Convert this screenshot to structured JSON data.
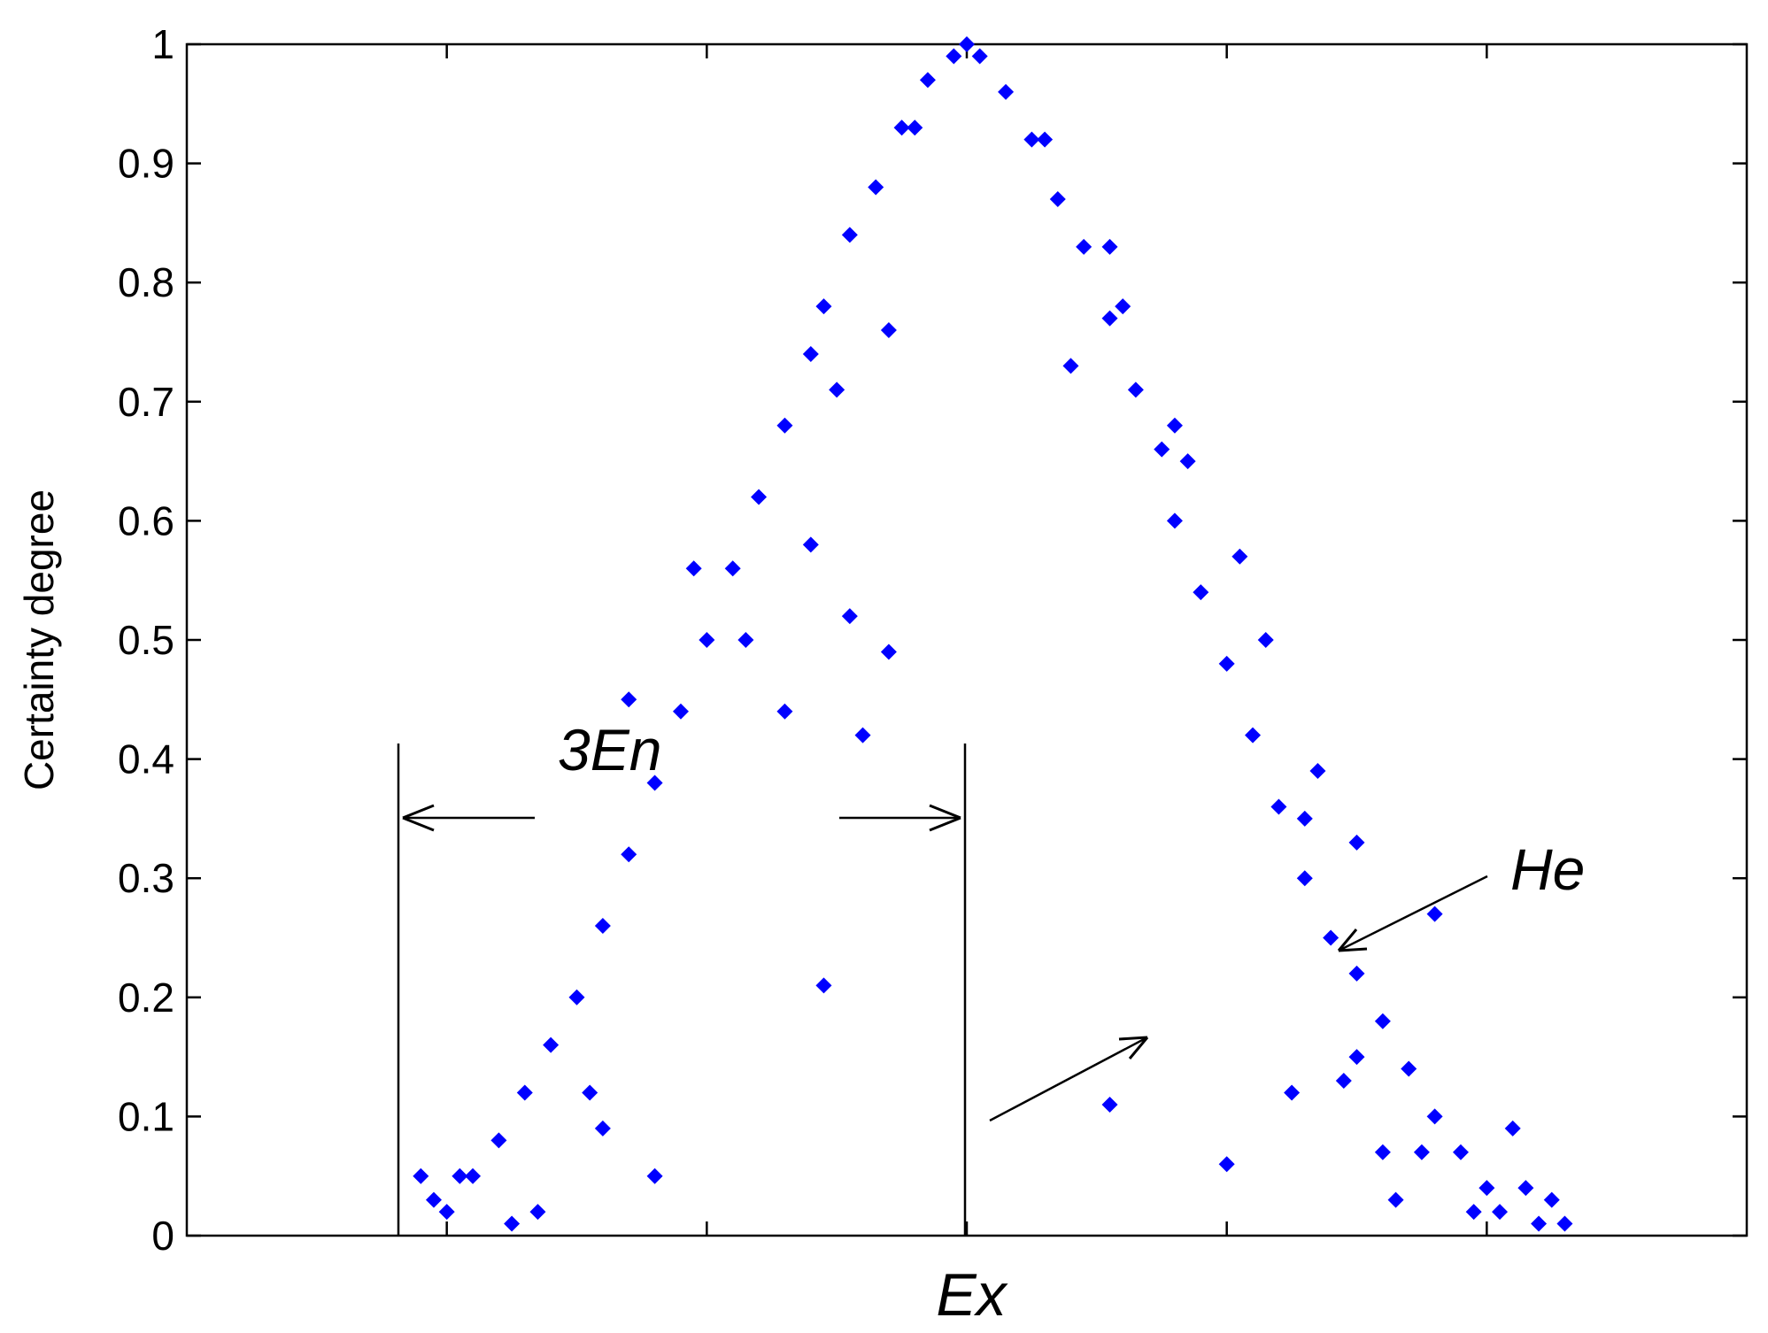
{
  "chart_data": {
    "type": "scatter",
    "title": "",
    "xlabel": "Ex",
    "ylabel": "Certainty degree",
    "x_range": [
      -6,
      6
    ],
    "ylim": [
      0,
      1
    ],
    "x_ticks": [
      -4,
      -2,
      0,
      2,
      4
    ],
    "y_ticks": [
      0,
      0.1,
      0.2,
      0.3,
      0.4,
      0.5,
      0.6,
      0.7,
      0.8,
      0.9,
      1
    ],
    "y_tick_labels": [
      "0",
      "0.1",
      "0.2",
      "0.3",
      "0.4",
      "0.5",
      "0.6",
      "0.7",
      "0.8",
      "0.9",
      "1"
    ],
    "grid": false,
    "marker_color": "#0000ff",
    "series": [
      {
        "marker": "diamond",
        "points": [
          [
            0,
            1
          ],
          [
            -0.1,
            0.99
          ],
          [
            0.1,
            0.99
          ],
          [
            -0.3,
            0.97
          ],
          [
            0.3,
            0.96
          ],
          [
            -0.5,
            0.93
          ],
          [
            0.5,
            0.92
          ],
          [
            -0.7,
            0.88
          ],
          [
            0.7,
            0.87
          ],
          [
            -0.9,
            0.84
          ],
          [
            0.9,
            0.83
          ],
          [
            -1.1,
            0.78
          ],
          [
            1.1,
            0.77
          ],
          [
            -1.2,
            0.74
          ],
          [
            1.3,
            0.71
          ],
          [
            -1.4,
            0.68
          ],
          [
            1.5,
            0.66
          ],
          [
            -1.6,
            0.62
          ],
          [
            1.6,
            0.6
          ],
          [
            -1.8,
            0.56
          ],
          [
            1.8,
            0.54
          ],
          [
            -2.0,
            0.5
          ],
          [
            2.0,
            0.48
          ],
          [
            -2.2,
            0.44
          ],
          [
            2.2,
            0.42
          ],
          [
            -2.4,
            0.38
          ],
          [
            2.4,
            0.36
          ],
          [
            -2.6,
            0.32
          ],
          [
            2.6,
            0.3
          ],
          [
            -2.8,
            0.26
          ],
          [
            2.8,
            0.25
          ],
          [
            -3.0,
            0.2
          ],
          [
            3.0,
            0.22
          ],
          [
            -3.2,
            0.16
          ],
          [
            3.2,
            0.18
          ],
          [
            -3.4,
            0.12
          ],
          [
            3.4,
            0.14
          ],
          [
            -3.6,
            0.08
          ],
          [
            3.6,
            0.1
          ],
          [
            -3.8,
            0.05
          ],
          [
            3.8,
            0.07
          ],
          [
            -4.0,
            0.02
          ],
          [
            4.0,
            0.04
          ],
          [
            -2.4,
            0.05
          ],
          [
            -3.5,
            0.01
          ],
          [
            -4.1,
            0.03
          ],
          [
            -4.2,
            0.05
          ],
          [
            -0.6,
            0.49
          ],
          [
            -1.1,
            0.21
          ],
          [
            1.1,
            0.11
          ],
          [
            2.0,
            0.06
          ],
          [
            2.5,
            0.12
          ],
          [
            3.0,
            0.15
          ],
          [
            3.5,
            0.07
          ],
          [
            3.3,
            0.03
          ],
          [
            4.2,
            0.09
          ],
          [
            4.3,
            0.04
          ],
          [
            4.5,
            0.03
          ],
          [
            4.4,
            0.01
          ],
          [
            4.6,
            0.01
          ],
          [
            2.7,
            0.39
          ],
          [
            2.1,
            0.57
          ],
          [
            1.7,
            0.65
          ],
          [
            1.6,
            0.68
          ],
          [
            -1.7,
            0.5
          ],
          [
            -1.2,
            0.58
          ],
          [
            -0.9,
            0.52
          ],
          [
            -0.8,
            0.42
          ],
          [
            -1.4,
            0.44
          ],
          [
            0.6,
            0.92
          ],
          [
            -0.4,
            0.93
          ],
          [
            -2.6,
            0.45
          ],
          [
            -2.1,
            0.56
          ],
          [
            2.3,
            0.5
          ],
          [
            2.6,
            0.35
          ],
          [
            3.6,
            0.27
          ],
          [
            3.0,
            0.33
          ],
          [
            1.2,
            0.78
          ],
          [
            1.1,
            0.83
          ],
          [
            -0.6,
            0.76
          ],
          [
            -1.0,
            0.71
          ],
          [
            0.8,
            0.73
          ],
          [
            -2.9,
            0.12
          ],
          [
            -2.8,
            0.09
          ],
          [
            -3.9,
            0.05
          ],
          [
            2.9,
            0.13
          ],
          [
            3.2,
            0.07
          ],
          [
            3.9,
            0.02
          ],
          [
            4.1,
            0.02
          ],
          [
            -3.3,
            0.02
          ]
        ]
      }
    ],
    "annotations": [
      {
        "text": "3En"
      },
      {
        "text": "He"
      }
    ]
  }
}
